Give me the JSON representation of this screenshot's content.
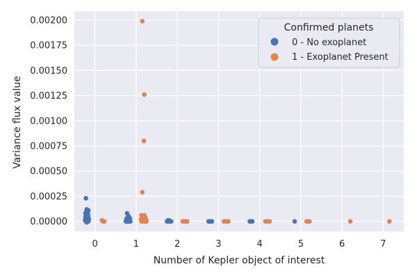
{
  "chart_data": {
    "type": "scatter",
    "xlabel": "Number of Kepler object of interest",
    "ylabel": "Variance flux value",
    "x_ticks": [
      "0",
      "1",
      "2",
      "3",
      "4",
      "5",
      "6",
      "7"
    ],
    "y_ticks": [
      "0.00000",
      "0.00025",
      "0.00050",
      "0.00075",
      "0.00100",
      "0.00125",
      "0.00150",
      "0.00175",
      "0.00200"
    ],
    "xlim": [
      -0.5,
      7.5
    ],
    "ylim": [
      -0.0001,
      0.00209
    ],
    "grid": true,
    "legend": {
      "title": "Confirmed planets",
      "placement": "top-right",
      "entries": [
        {
          "label": "0 - No exoplanet",
          "color": "#4c72b0"
        },
        {
          "label": "1 - Exoplanet Present",
          "color": "#dd8452"
        }
      ]
    },
    "colors": {
      "background": "#eaeaf2",
      "grid": "#ffffff",
      "no_exoplanet": "#4c72b0",
      "exoplanet": "#dd8452"
    },
    "series": [
      {
        "name": "0 - No exoplanet",
        "points": [
          [
            -0.22,
            0.00023
          ],
          [
            -0.2,
            0.00012
          ],
          [
            -0.18,
            0.00011
          ],
          [
            -0.21,
            0.0001
          ],
          [
            -0.16,
            0.00011
          ],
          [
            -0.19,
            9e-05
          ],
          [
            -0.23,
            8e-05
          ],
          [
            -0.17,
            8e-05
          ],
          [
            -0.2,
            7e-05
          ],
          [
            -0.22,
            6e-05
          ],
          [
            -0.18,
            6e-05
          ],
          [
            -0.21,
            5e-05
          ],
          [
            -0.16,
            5e-05
          ],
          [
            -0.19,
            4e-05
          ],
          [
            -0.23,
            4e-05
          ],
          [
            -0.17,
            3e-05
          ],
          [
            -0.2,
            3e-05
          ],
          [
            -0.22,
            2e-05
          ],
          [
            -0.18,
            2e-05
          ],
          [
            -0.15,
            2e-05
          ],
          [
            -0.21,
            1e-05
          ],
          [
            -0.24,
            1e-05
          ],
          [
            -0.17,
            1e-05
          ],
          [
            -0.19,
            0.0
          ],
          [
            -0.16,
            0.0
          ],
          [
            -0.22,
            0.0
          ],
          [
            -0.2,
            -1e-05
          ],
          [
            -0.18,
            0.0
          ],
          [
            0.78,
            8e-05
          ],
          [
            0.82,
            5e-05
          ],
          [
            0.8,
            4e-05
          ],
          [
            0.77,
            3e-05
          ],
          [
            0.85,
            3e-05
          ],
          [
            0.79,
            2e-05
          ],
          [
            0.83,
            2e-05
          ],
          [
            0.76,
            1e-05
          ],
          [
            0.81,
            1e-05
          ],
          [
            0.84,
            1e-05
          ],
          [
            0.78,
            0.0
          ],
          [
            0.82,
            0.0
          ],
          [
            0.8,
            0.0
          ],
          [
            0.86,
            0.0
          ],
          [
            0.75,
            0.0
          ],
          [
            1.77,
            1e-05
          ],
          [
            1.8,
            1e-05
          ],
          [
            1.83,
            0.0
          ],
          [
            1.75,
            0.0
          ],
          [
            1.79,
            0.0
          ],
          [
            1.85,
            0.0
          ],
          [
            2.76,
            0.0
          ],
          [
            2.79,
            0.0
          ],
          [
            2.82,
            0.0
          ],
          [
            2.84,
            0.0
          ],
          [
            3.76,
            0.0
          ],
          [
            3.79,
            0.0
          ],
          [
            3.82,
            0.0
          ],
          [
            4.85,
            0.0
          ]
        ]
      },
      {
        "name": "1 - Exoplanet Present",
        "points": [
          [
            0.17,
            1e-05
          ],
          [
            0.2,
            0.0
          ],
          [
            0.23,
            0.0
          ],
          [
            1.15,
            0.00199
          ],
          [
            1.2,
            0.00126
          ],
          [
            1.19,
            0.0008
          ],
          [
            1.15,
            0.00029
          ],
          [
            1.13,
            6e-05
          ],
          [
            1.2,
            6e-05
          ],
          [
            1.17,
            5e-05
          ],
          [
            1.22,
            4e-05
          ],
          [
            1.14,
            4e-05
          ],
          [
            1.18,
            3e-05
          ],
          [
            1.21,
            3e-05
          ],
          [
            1.16,
            2e-05
          ],
          [
            1.24,
            2e-05
          ],
          [
            1.12,
            2e-05
          ],
          [
            1.19,
            1e-05
          ],
          [
            1.23,
            1e-05
          ],
          [
            1.15,
            1e-05
          ],
          [
            1.2,
            0.0
          ],
          [
            1.17,
            0.0
          ],
          [
            1.25,
            0.0
          ],
          [
            1.13,
            0.0
          ],
          [
            1.22,
            0.0
          ],
          [
            2.13,
            0.0
          ],
          [
            2.17,
            0.0
          ],
          [
            2.21,
            0.0
          ],
          [
            2.24,
            0.0
          ],
          [
            3.13,
            0.0
          ],
          [
            3.17,
            0.0
          ],
          [
            3.2,
            0.0
          ],
          [
            3.24,
            0.0
          ],
          [
            4.14,
            0.0
          ],
          [
            4.17,
            0.0
          ],
          [
            4.21,
            0.0
          ],
          [
            4.24,
            0.0
          ],
          [
            5.14,
            0.0
          ],
          [
            5.17,
            0.0
          ],
          [
            5.21,
            0.0
          ],
          [
            6.2,
            0.0
          ],
          [
            7.15,
            0.0
          ]
        ]
      }
    ]
  }
}
